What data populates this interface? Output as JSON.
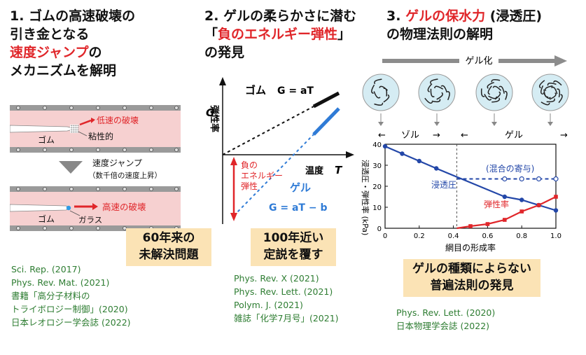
{
  "col1": {
    "num": "1.",
    "title_l1": "ゴムの高速破壊の",
    "title_l2": "引き金となる",
    "title_l3_red": "速度ジャンプ",
    "title_l3_tail": "の",
    "title_l4": "メカニズムを解明",
    "top_slow_label": "低速の破壊",
    "top_visc_label": "粘性的",
    "top_rubber_label": "ゴム",
    "jump_label": "速度ジャンプ",
    "jump_sub": "（数千倍の速度上昇）",
    "bot_fast_label": "高速の破壊",
    "bot_rubber_label": "ゴム",
    "bot_glass_label": "ガラス",
    "box_l1": "60年来の",
    "box_l2": "未解決問題",
    "refs": [
      "Sci. Rep. (2017)",
      "Phys. Rev. Mat. (2021)",
      "書籍「高分子材料の",
      "トライボロジー制御」(2020)",
      "日本レオロジー学会誌 (2022)"
    ]
  },
  "col2": {
    "num": "2.",
    "title_l1": "ゲルの柔らかさに潜む",
    "title_l2_open": "「",
    "title_l2_red": "負のエネルギー弾性",
    "title_l2_close": "」",
    "title_l3": "の発見",
    "ylabel": "弾性率",
    "ylabel_sym": "G",
    "xlabel": "温度",
    "xlabel_sym": "T",
    "rubber_name": "ゴム",
    "rubber_eq": "G = aT",
    "gel_name": "ゲル",
    "gel_eq": "G = aT − b",
    "neg_l1": "負の",
    "neg_l2": "エネルギー",
    "neg_l3": "弾性",
    "box_l1": "100年近い",
    "box_l2": "定説を覆す",
    "refs": [
      "Phys. Rev. X (2021)",
      "Phys. Rev. Lett. (2021)",
      "Polym. J. (2021)",
      "雑誌「化学7月号」(2021)"
    ]
  },
  "col3": {
    "num": "3.",
    "title_l1_red": "ゲルの保水力",
    "title_l1_tail": " (浸透圧)",
    "title_l2": "の物理法則の解明",
    "gelation_label": "ゲル化",
    "sol_label": "ゾル",
    "gel_label": "ゲル",
    "box_l1": "ゲルの種類によらない",
    "box_l2": "普遍法則の発見",
    "refs": [
      "Phys. Rev. Lett. (2020)",
      "日本物理学会誌 (2022)"
    ]
  },
  "chart_data": {
    "type": "scatter",
    "xlabel": "網目の形成率",
    "ylabel": "浸透圧・弾性率 (kPa)",
    "xlim": [
      0,
      1.0
    ],
    "ylim": [
      0,
      40
    ],
    "xticks": [
      "0",
      "0.2",
      "0.4",
      "0.6",
      "0.8",
      "1.0"
    ],
    "yticks": [
      "0",
      "10",
      "20",
      "30",
      "40"
    ],
    "divider_x": 0.42,
    "annotation_mix": "(混合の寄与)",
    "series": [
      {
        "name": "浸透圧",
        "color": "#2347a8",
        "marker": "circle",
        "x": [
          0,
          0.1,
          0.2,
          0.3,
          0.7,
          0.8,
          0.9,
          1.0
        ],
        "y": [
          39,
          35.5,
          32,
          28.5,
          15,
          13.5,
          11,
          8.5
        ]
      },
      {
        "name": "弾性率",
        "color": "#e0262a",
        "marker": "square",
        "x": [
          0.5,
          0.6,
          0.7,
          0.8,
          0.9,
          1.0
        ],
        "y": [
          1,
          2,
          4,
          8,
          11,
          15
        ]
      },
      {
        "name": "(混合の寄与)",
        "color": "#2347a8",
        "marker": "open-circle",
        "x": [
          0.7,
          0.8,
          0.9,
          1.0
        ],
        "y": [
          23.5,
          23.5,
          23.5,
          23.5
        ]
      }
    ]
  },
  "colors": {
    "accent_red": "#e0262a",
    "accent_blue": "#2f7bd6",
    "box_bg": "#fbe3b5",
    "ref_green": "#2e7d32"
  }
}
